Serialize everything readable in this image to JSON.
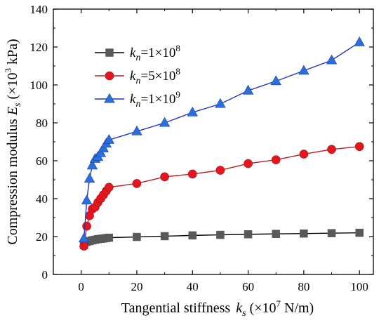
{
  "chart_data": {
    "type": "line",
    "xlabel": {
      "main": "Tangential stiffness",
      "symbol": "k",
      "subscript": "s",
      "unit_prefix": "(×10",
      "unit_power": "7",
      "unit_suffix": " N/m)"
    },
    "ylabel": {
      "main": "Compression modulus ",
      "symbol": "E",
      "subscript": "s",
      "unit_prefix": " (×10",
      "unit_power": "3",
      "unit_suffix": " kPa)"
    },
    "xlim": [
      -10,
      105
    ],
    "ylim": [
      0,
      140
    ],
    "xticks": [
      0,
      20,
      40,
      60,
      80,
      100
    ],
    "yticks": [
      0,
      20,
      40,
      60,
      80,
      100,
      120,
      140
    ],
    "grid": false,
    "legend_position": "upper-left",
    "series": [
      {
        "name": "kn=1×10^8",
        "label_symbol": "k",
        "label_sub": "n",
        "label_rest": "=1×10",
        "label_power": "8",
        "marker": "square",
        "color": "#000000",
        "marker_color": "#595959",
        "x": [
          1,
          2,
          3,
          4,
          5,
          6,
          7,
          8,
          9,
          10,
          20,
          30,
          40,
          50,
          60,
          70,
          80,
          90,
          100
        ],
        "y": [
          15.5,
          17.2,
          17.6,
          18.0,
          18.3,
          18.6,
          18.8,
          19.0,
          19.2,
          19.4,
          19.8,
          20.2,
          20.6,
          20.9,
          21.2,
          21.4,
          21.6,
          21.8,
          22.0
        ]
      },
      {
        "name": "kn=5×10^8",
        "label_symbol": "k",
        "label_sub": "n",
        "label_rest": "=5×10",
        "label_power": "8",
        "marker": "circle",
        "color": "#b22222",
        "marker_color": "#e8141e",
        "x": [
          1,
          2,
          3,
          4,
          5,
          6,
          7,
          8,
          9,
          10,
          20,
          30,
          40,
          50,
          60,
          70,
          80,
          90,
          100
        ],
        "y": [
          15.0,
          25.5,
          31.0,
          34.5,
          35.5,
          38.0,
          40.0,
          42.0,
          44.0,
          46.0,
          48.0,
          51.5,
          53.0,
          55.0,
          58.5,
          60.5,
          63.5,
          66.0,
          67.5
        ]
      },
      {
        "name": "kn=1×10^9",
        "label_symbol": "k",
        "label_sub": "n",
        "label_rest": "=1×10",
        "label_power": "9",
        "marker": "triangle",
        "color": "#1f35c4",
        "marker_color": "#2a6fe0",
        "x": [
          1,
          2,
          3,
          4,
          5,
          6,
          7,
          8,
          9,
          10,
          20,
          30,
          40,
          50,
          60,
          70,
          80,
          90,
          100
        ],
        "y": [
          19.0,
          39.0,
          50.5,
          57.5,
          61.0,
          62.0,
          64.0,
          66.5,
          69.0,
          71.0,
          75.5,
          80.0,
          85.5,
          90.0,
          97.0,
          102.0,
          107.5,
          113.0,
          122.5
        ]
      }
    ]
  }
}
